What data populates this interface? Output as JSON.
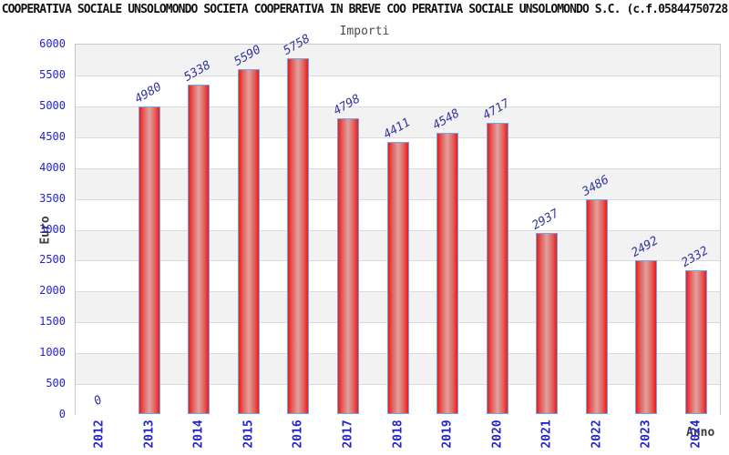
{
  "header": {
    "title": "COOPERATIVA SOCIALE UNSOLOMONDO SOCIETA COOPERATIVA IN BREVE COO PERATIVA SOCIALE UNSOLOMONDO S.C. (c.f.05844750728",
    "subtitle": "Importi"
  },
  "chart_data": {
    "type": "bar",
    "title": "Importi",
    "categories": [
      "2012",
      "2013",
      "2014",
      "2015",
      "2016",
      "2017",
      "2018",
      "2019",
      "2020",
      "2021",
      "2022",
      "2023",
      "2024"
    ],
    "values": [
      0,
      4980,
      5338,
      5590,
      5758,
      4798,
      4411,
      4548,
      4717,
      2937,
      3486,
      2492,
      2332
    ],
    "xlabel": "Anno",
    "ylabel": "Euro",
    "ylim": [
      0,
      6000
    ],
    "ytick_step": 500,
    "yticks": [
      0,
      500,
      1000,
      1500,
      2000,
      2500,
      3000,
      3500,
      4000,
      4500,
      5000,
      5500,
      6000
    ],
    "grid": true,
    "band_fill": "alternating",
    "legend": "none",
    "colors": {
      "bar_edge": "#ec1b1b",
      "bar_center": "#dfa2a0",
      "bar_outline": "#6aa7ee",
      "tick_label": "#2323cd",
      "value_label": "#3333a0",
      "band_gray": "#f2f2f2",
      "gridline": "#dcdcdc"
    }
  }
}
